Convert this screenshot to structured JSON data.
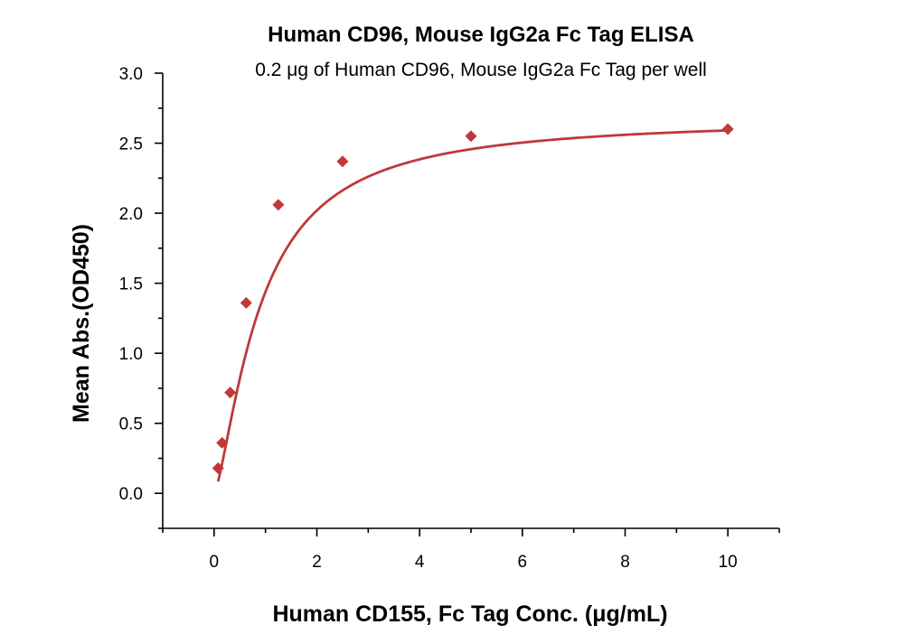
{
  "chart_data": {
    "type": "scatter",
    "title": "Human CD96, Mouse IgG2a Fc Tag ELISA",
    "subtitle": "0.2 μg of Human CD96, Mouse IgG2a Fc Tag per well",
    "xlabel": "Human CD155, Fc Tag Conc. (μg/mL)",
    "ylabel": "Mean Abs.(OD450)",
    "xlim": [
      -1,
      11
    ],
    "ylim": [
      -0.25,
      3.0
    ],
    "xticks": [
      0,
      2,
      4,
      6,
      8,
      10
    ],
    "xtick_labels": [
      "0",
      "2",
      "4",
      "6",
      "8",
      "10"
    ],
    "yticks": [
      0.0,
      0.5,
      1.0,
      1.5,
      2.0,
      2.5,
      3.0
    ],
    "ytick_labels": [
      "0.0",
      "0.5",
      "1.0",
      "1.5",
      "2.0",
      "2.5",
      "3.0"
    ],
    "grid": false,
    "series": [
      {
        "name": "Human CD155, Fc Tag",
        "marker": "diamond",
        "color": "#c0383a",
        "x": [
          0.078,
          0.156,
          0.313,
          0.625,
          1.25,
          2.5,
          5,
          10
        ],
        "y": [
          0.18,
          0.36,
          0.72,
          1.36,
          2.06,
          2.37,
          2.55,
          2.6
        ]
      }
    ],
    "fit_curve": {
      "type": "4PL",
      "color": "#c0383a",
      "bottom": 0.0,
      "top": 2.68,
      "ec50": 0.9,
      "hill": 1.4
    }
  }
}
